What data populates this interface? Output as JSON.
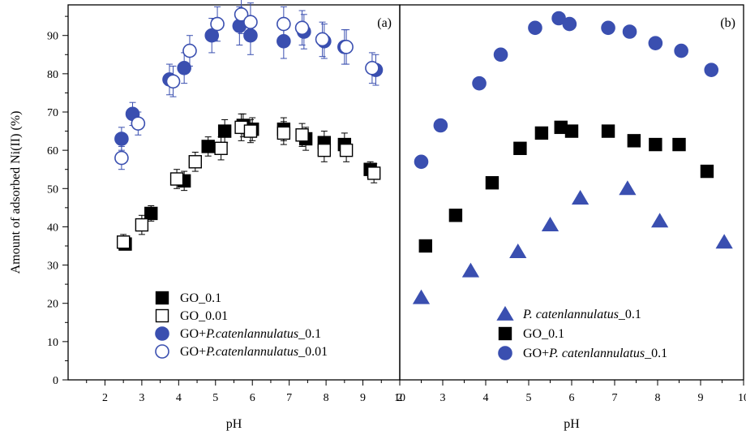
{
  "colors": {
    "black": "#000000",
    "blue": "#3a4fb0"
  },
  "chart_data": [
    {
      "panel_label": "(a)",
      "type": "scatter",
      "xlabel": "pH",
      "ylabel": "Amount of adsorbed Ni(II) (%)",
      "xlim": [
        1,
        10
      ],
      "ylim": [
        0,
        98
      ],
      "xticks": [
        2,
        3,
        4,
        5,
        6,
        7,
        8,
        9,
        10
      ],
      "yticks": [
        0,
        10,
        20,
        30,
        40,
        50,
        60,
        70,
        80,
        90
      ],
      "legend_position": "bottom-left",
      "series": [
        {
          "name": "GO_0.1",
          "name_parts": [
            "GO_0.1"
          ],
          "marker": "square",
          "fill": "filled",
          "color": "#000000",
          "error_bars": true,
          "x": [
            2.55,
            3.25,
            4.15,
            4.8,
            5.25,
            5.75,
            6.0,
            6.85,
            7.45,
            7.95,
            8.5,
            9.2
          ],
          "y": [
            35.5,
            43.5,
            52.0,
            61.0,
            65.0,
            66.5,
            65.5,
            65.5,
            63.0,
            62.0,
            61.5,
            55.0
          ],
          "err": [
            1.5,
            2.0,
            2.5,
            2.5,
            3.0,
            3.0,
            3.0,
            3.0,
            3.0,
            3.0,
            3.0,
            2.0
          ]
        },
        {
          "name": "GO_0.01",
          "name_parts": [
            "GO_0.01"
          ],
          "marker": "square",
          "fill": "open",
          "color": "#000000",
          "error_bars": true,
          "x": [
            2.5,
            3.0,
            3.95,
            4.45,
            5.15,
            5.7,
            5.95,
            6.85,
            7.35,
            7.95,
            8.55,
            9.3
          ],
          "y": [
            36.0,
            40.5,
            52.5,
            57.0,
            60.5,
            66.0,
            65.0,
            64.5,
            64.0,
            60.0,
            60.0,
            54.0
          ],
          "err": [
            2.0,
            2.5,
            2.5,
            2.5,
            3.0,
            3.5,
            3.0,
            3.0,
            3.0,
            3.0,
            3.0,
            2.5
          ]
        },
        {
          "name": "GO+P.catenlannulatus_0.1",
          "name_parts": [
            "GO+",
            "P.catenlannulatus",
            "_0.1"
          ],
          "marker": "circle",
          "fill": "filled",
          "color": "#3a4fb0",
          "error_bars": true,
          "x": [
            2.45,
            2.75,
            3.75,
            4.15,
            4.9,
            5.65,
            5.95,
            6.85,
            7.4,
            7.95,
            8.5,
            9.35
          ],
          "y": [
            63.0,
            69.5,
            78.5,
            81.5,
            90.0,
            92.5,
            90.0,
            88.5,
            91.0,
            88.5,
            87.0,
            81.0
          ],
          "err": [
            3.0,
            3.0,
            4.0,
            4.0,
            4.5,
            5.0,
            5.0,
            4.5,
            4.5,
            4.5,
            4.5,
            4.0
          ]
        },
        {
          "name": "GO+P.catenlannulatus_0.01",
          "name_parts": [
            "GO+",
            "P.catenlannulatus",
            "_0.01"
          ],
          "marker": "circle",
          "fill": "open",
          "color": "#3a4fb0",
          "error_bars": true,
          "x": [
            2.45,
            2.9,
            3.85,
            4.3,
            5.05,
            5.7,
            5.95,
            6.85,
            7.35,
            7.9,
            8.55,
            9.25
          ],
          "y": [
            58.0,
            67.0,
            78.0,
            86.0,
            93.0,
            95.5,
            93.5,
            93.0,
            92.0,
            89.0,
            87.0,
            81.5
          ],
          "err": [
            3.0,
            3.0,
            4.0,
            4.0,
            4.5,
            5.0,
            5.0,
            4.5,
            4.5,
            4.5,
            4.5,
            4.0
          ]
        }
      ]
    },
    {
      "panel_label": "(b)",
      "type": "scatter",
      "xlabel": "pH",
      "xlim": [
        2,
        10
      ],
      "ylim": [
        0,
        98
      ],
      "xticks": [
        2,
        3,
        4,
        5,
        6,
        7,
        8,
        9,
        10
      ],
      "legend_position": "bottom-center",
      "series": [
        {
          "name": "P. catenlannulatus_0.1",
          "name_parts": [
            "",
            "P. catenlannulatus",
            "_0.1"
          ],
          "marker": "triangle",
          "fill": "filled",
          "color": "#3a4fb0",
          "x": [
            2.5,
            3.65,
            4.75,
            5.5,
            6.2,
            7.3,
            8.05,
            9.55
          ],
          "y": [
            21.5,
            28.5,
            33.5,
            40.5,
            47.5,
            50.0,
            41.5,
            36.0
          ]
        },
        {
          "name": "GO_0.1",
          "name_parts": [
            "GO_0.1"
          ],
          "marker": "square",
          "fill": "filled",
          "color": "#000000",
          "x": [
            2.6,
            3.3,
            4.15,
            4.8,
            5.3,
            5.75,
            6.0,
            6.85,
            7.45,
            7.95,
            8.5,
            9.15
          ],
          "y": [
            35.0,
            43.0,
            51.5,
            60.5,
            64.5,
            66.0,
            65.0,
            65.0,
            62.5,
            61.5,
            61.5,
            54.5
          ]
        },
        {
          "name": "GO+P. catenlannulatus_0.1",
          "name_parts": [
            "GO+",
            "P. catenlannulatus",
            "_0.1"
          ],
          "marker": "circle",
          "fill": "filled",
          "color": "#3a4fb0",
          "x": [
            2.5,
            2.95,
            3.85,
            4.35,
            5.15,
            5.7,
            5.95,
            6.85,
            7.35,
            7.95,
            8.55,
            9.25
          ],
          "y": [
            57.0,
            66.5,
            77.5,
            85.0,
            92.0,
            94.5,
            93.0,
            92.0,
            91.0,
            88.0,
            86.0,
            81.0
          ]
        }
      ]
    }
  ]
}
